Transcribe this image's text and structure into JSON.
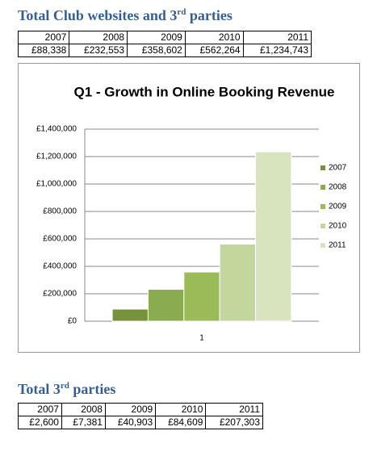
{
  "heading1": {
    "before": "Total Club websites and 3",
    "sup": "rd",
    "after": " parties"
  },
  "table1": {
    "header": [
      "2007",
      "2008",
      "2009",
      "2010",
      "2011"
    ],
    "rows": [
      [
        "£88,338",
        "£232,553",
        "£358,602",
        "£562,264",
        "£1,234,743"
      ]
    ]
  },
  "chart_data": {
    "type": "bar",
    "title": "Q1 - Growth in Online Booking Revenue",
    "categories": [
      "1"
    ],
    "series": [
      {
        "name": "2007",
        "color": "#76923c",
        "values": [
          88338
        ]
      },
      {
        "name": "2008",
        "color": "#8aab4f",
        "values": [
          232553
        ]
      },
      {
        "name": "2009",
        "color": "#9bbb59",
        "values": [
          358602
        ]
      },
      {
        "name": "2010",
        "color": "#c3d69b",
        "values": [
          562264
        ]
      },
      {
        "name": "2011",
        "color": "#d7e4bd",
        "values": [
          1234743
        ]
      }
    ],
    "ylim": [
      0,
      1400000
    ],
    "yticks": [
      {
        "value": 0,
        "label": "£0"
      },
      {
        "value": 200000,
        "label": "£200,000"
      },
      {
        "value": 400000,
        "label": "£400,000"
      },
      {
        "value": 600000,
        "label": "£600,000"
      },
      {
        "value": 800000,
        "label": "£800,000"
      },
      {
        "value": 1000000,
        "label": "£1,000,000"
      },
      {
        "value": 1200000,
        "label": "£1,200,000"
      },
      {
        "value": 1400000,
        "label": "£1,400,000"
      }
    ],
    "grid": true,
    "legend": "right"
  },
  "heading2": {
    "before": "Total 3",
    "sup": "rd",
    "after": " parties"
  },
  "table2": {
    "header": [
      "2007",
      "2008",
      "2009",
      "2010",
      "2011"
    ],
    "rows": [
      [
        "£2,600",
        "£7,381",
        "£40,903",
        "£84,609",
        "£207,303"
      ]
    ]
  }
}
